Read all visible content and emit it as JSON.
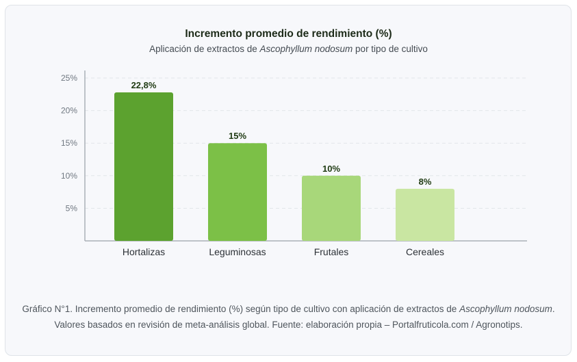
{
  "chart_data": {
    "type": "bar",
    "title": "Incremento promedio de rendimiento (%)",
    "subtitle": {
      "prefix": "Aplicación de extractos de ",
      "species": "Ascophyllum nodosum",
      "suffix": " por tipo de cultivo"
    },
    "categories": [
      "Hortalizas",
      "Leguminosas",
      "Frutales",
      "Cereales"
    ],
    "values": [
      22.8,
      15,
      10,
      8
    ],
    "value_labels": [
      "22,8%",
      "15%",
      "10%",
      "8%"
    ],
    "bar_colors": [
      "#5ca22f",
      "#7cc047",
      "#a8d77a",
      "#c9e6a2"
    ],
    "yticks": [
      5,
      10,
      15,
      20,
      25
    ],
    "ytick_labels": [
      "5%",
      "10%",
      "15%",
      "20%",
      "25%"
    ],
    "ylim": [
      0,
      25
    ],
    "xlabel": "",
    "ylabel": "",
    "grid": true
  },
  "caption": {
    "line1_prefix": "Gráfico N°1. Incremento promedio de rendimiento (%) según tipo de cultivo con aplicación de extractos de ",
    "line1_species": "Ascophyllum nodosum",
    "line1_suffix": ".",
    "line2": "Valores basados en revisión de meta-análisis global. Fuente: elaboración propia – Portalfruticola.com / Agronotips."
  },
  "colors": {
    "grid": "#e2e5e9",
    "axis": "#aab0b7",
    "card_bg": "#f7f8fb"
  }
}
